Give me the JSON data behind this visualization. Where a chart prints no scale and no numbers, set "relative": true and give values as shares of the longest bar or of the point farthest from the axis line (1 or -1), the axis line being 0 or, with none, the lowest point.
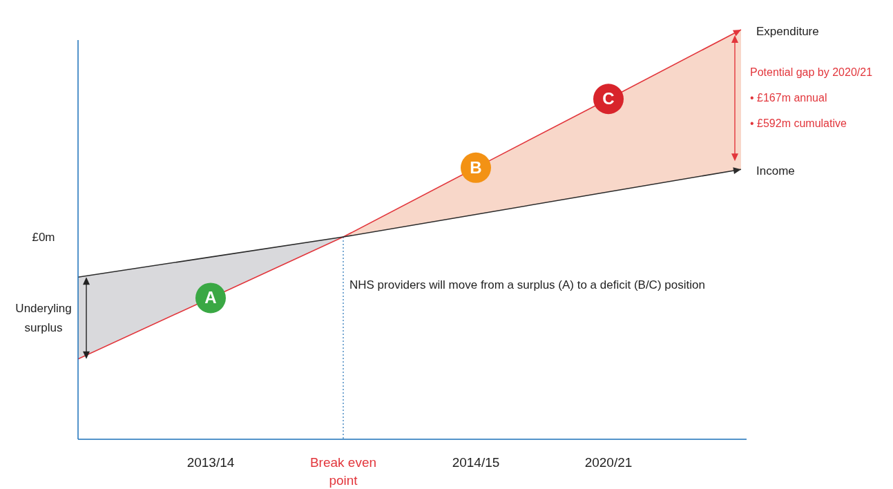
{
  "chart_data": {
    "type": "line",
    "relative": true,
    "categories": [
      null,
      "2013/14",
      "Break even point",
      "2014/15",
      "2020/21",
      null
    ],
    "series": [
      {
        "name": "Expenditure",
        "color": "#e2363c",
        "values": [
          0.196,
          0.345,
          0.494,
          0.663,
          0.831,
          1.0
        ]
      },
      {
        "name": "Income",
        "color": "#2b2b2b",
        "values": [
          0.396,
          0.445,
          0.494,
          0.549,
          0.604,
          0.659
        ]
      }
    ],
    "ref_lines": [
      {
        "axis": "x",
        "value": "Break even point",
        "color": "#1f6fb5",
        "line_style": "dotted"
      }
    ],
    "annotations": [
      "£0m",
      "Underyling surplus",
      {
        "text": "A",
        "x": "2013/14",
        "y": 0.345
      },
      {
        "text": "B",
        "x": "2014/15",
        "y": 0.663
      },
      {
        "text": "C",
        "x": "2020/21",
        "y": 0.831
      },
      "Potential gap by 2020/21",
      "• £167m annual",
      "• £592m cumulative",
      "NHS providers will move from a surplus (A) to a deficit (B/C) position"
    ],
    "legend": "right",
    "line_style": "solid"
  }
}
